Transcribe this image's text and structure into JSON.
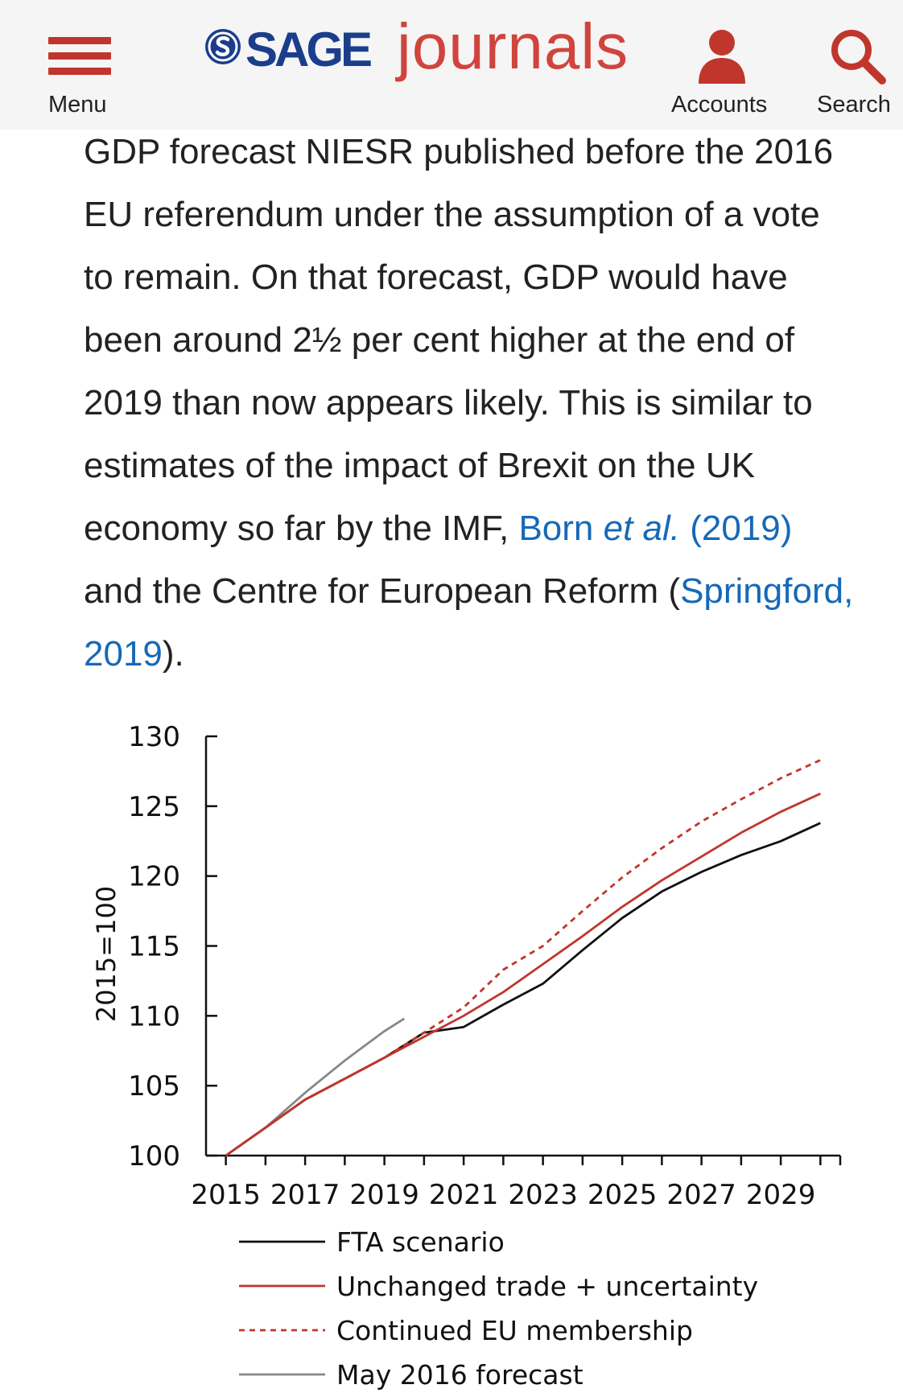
{
  "header": {
    "menu_label": "Menu",
    "logo_sage": "SAGE",
    "logo_journals": "journals",
    "accounts_label": "Accounts",
    "search_label": "Search",
    "brand_red": "#c0362c",
    "brand_blue": "#1b3e8c"
  },
  "article": {
    "p1": "GDP forecast NIESR published before the 2016 EU referendum under the assumption of a vote to remain. On that forecast, GDP would have been around 2½ per cent higher at the end of 2019 than now appears likely. This is similar to estimates of the impact of Brexit on the UK economy so far by the IMF,",
    "link1_a": "Born ",
    "link1_b": "et al.",
    "link1_c": " (2019)",
    "p2": " and the Centre for European Reform (",
    "link2": "Springford, 2019",
    "p3": ")."
  },
  "chart_data": {
    "type": "line",
    "ylabel": "2015=100",
    "ylim": [
      100,
      130
    ],
    "yticks": [
      100,
      105,
      110,
      115,
      120,
      125,
      130
    ],
    "xlim": [
      2014.5,
      2030.5
    ],
    "xticks": [
      2015,
      2017,
      2019,
      2021,
      2023,
      2025,
      2027,
      2029
    ],
    "legend_position": "bottom",
    "series": [
      {
        "name": "FTA scenario",
        "color": "#111111",
        "dash": "solid",
        "x": [
          2015,
          2016,
          2017,
          2018,
          2019,
          2020,
          2021,
          2022,
          2023,
          2024,
          2025,
          2026,
          2027,
          2028,
          2029,
          2030
        ],
        "values": [
          100,
          102,
          104,
          105.5,
          107,
          108.8,
          109.2,
          110.8,
          112.3,
          114.7,
          117,
          118.9,
          120.3,
          121.5,
          122.5,
          123.8
        ]
      },
      {
        "name": "Unchanged trade + uncertainty",
        "color": "#c0362c",
        "dash": "solid",
        "x": [
          2015,
          2016,
          2017,
          2018,
          2019,
          2020,
          2021,
          2022,
          2023,
          2024,
          2025,
          2026,
          2027,
          2028,
          2029,
          2030
        ],
        "values": [
          100,
          102,
          104,
          105.5,
          107,
          108.5,
          110,
          111.7,
          113.7,
          115.7,
          117.8,
          119.7,
          121.4,
          123.1,
          124.6,
          125.9
        ]
      },
      {
        "name": "Continued EU membership",
        "color": "#c0362c",
        "dash": "dashed",
        "x": [
          2015,
          2016,
          2017,
          2018,
          2019,
          2020,
          2021,
          2022,
          2023,
          2024,
          2025,
          2026,
          2027,
          2028,
          2029,
          2030
        ],
        "values": [
          100,
          102,
          104,
          105.5,
          107,
          108.8,
          110.6,
          113.3,
          115,
          117.5,
          119.9,
          122,
          123.9,
          125.5,
          127,
          128.3
        ]
      },
      {
        "name": "May 2016 forecast",
        "color": "#888888",
        "dash": "solid",
        "x": [
          2016,
          2017,
          2018,
          2019,
          2019.5
        ],
        "values": [
          102,
          104.5,
          106.8,
          108.9,
          109.8
        ]
      }
    ]
  }
}
